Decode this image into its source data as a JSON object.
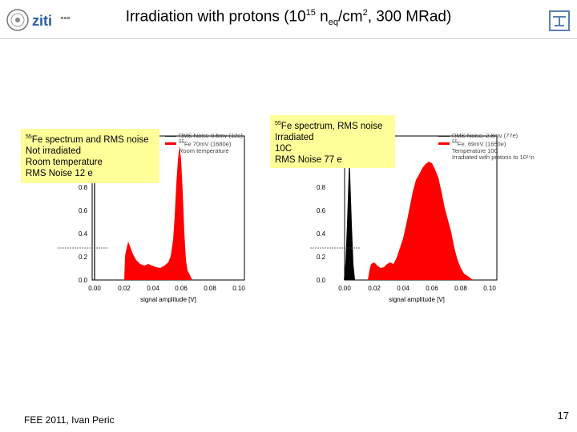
{
  "header": {
    "logo_text": "ziti",
    "title_pre": "Irradiation with protons (10",
    "title_sup1": "15",
    "title_mid1": " n",
    "title_sub": "eq",
    "title_mid2": "/cm",
    "title_sup2": "2",
    "title_post": ", 300 MRad)"
  },
  "left_plot": {
    "note_sup": "55",
    "note_line1": "Fe spectrum and RMS noise",
    "note_line2": "Not irradiated",
    "note_line3": "Room temperature",
    "note_line4": "RMS Noise 12 e",
    "legend": [
      "RMS Noise 0.5mv (12e)",
      "Fe 70mV (1680e)",
      "Room temperature"
    ],
    "legend_fe_sup": "55",
    "xlabel": "signal amplitude [V]",
    "xticks": [
      "0.00",
      "0.02",
      "0.04",
      "0.06",
      "0.08",
      "0.10"
    ],
    "yticks": [
      "0.0",
      "0.2",
      "0.4",
      "0.6",
      "0.8"
    ],
    "fill_color": "#ff0000"
  },
  "right_plot": {
    "note_sup": "55",
    "note_line1": "Fe spectrum, RMS noise",
    "note_line2": "Irradiated",
    "note_line3": "10C",
    "note_line4": "RMS Noise 77 e",
    "legend": [
      "RMS Noise, 2.8mv (77e)",
      "Fe, 69mV (1650e)",
      "Temperature 10C",
      "Irradiated with protons to 10¹⁵n"
    ],
    "legend_fe_sup": "55",
    "xlabel": "signal amplitude [V]",
    "xticks": [
      "0.00",
      "0.02",
      "0.04",
      "0.06",
      "0.08",
      "0.10"
    ],
    "yticks": [
      "0.0",
      "0.2",
      "0.4",
      "0.6",
      "0.8"
    ],
    "fill_color": "#ff0000"
  },
  "footer": {
    "text": "FEE 2011, Ivan Peric",
    "page_number": "17"
  }
}
